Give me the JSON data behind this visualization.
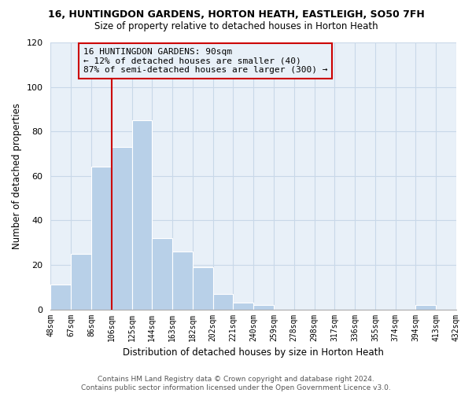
{
  "title": "16, HUNTINGDON GARDENS, HORTON HEATH, EASTLEIGH, SO50 7FH",
  "subtitle": "Size of property relative to detached houses in Horton Heath",
  "xlabel": "Distribution of detached houses by size in Horton Heath",
  "ylabel": "Number of detached properties",
  "bar_values": [
    11,
    25,
    64,
    73,
    85,
    32,
    26,
    19,
    7,
    3,
    2,
    0,
    0,
    0,
    0,
    0,
    0,
    0,
    2,
    0
  ],
  "bin_labels": [
    "48sqm",
    "67sqm",
    "86sqm",
    "106sqm",
    "125sqm",
    "144sqm",
    "163sqm",
    "182sqm",
    "202sqm",
    "221sqm",
    "240sqm",
    "259sqm",
    "278sqm",
    "298sqm",
    "317sqm",
    "336sqm",
    "355sqm",
    "374sqm",
    "394sqm",
    "413sqm",
    "432sqm"
  ],
  "bar_color": "#b8d0e8",
  "vline_color": "#cc0000",
  "vline_x_index": 2,
  "annotation_text_line1": "16 HUNTINGDON GARDENS: 90sqm",
  "annotation_text_line2": "← 12% of detached houses are smaller (40)",
  "annotation_text_line3": "87% of semi-detached houses are larger (300) →",
  "annotation_box_edgecolor": "#cc0000",
  "ylim": [
    0,
    120
  ],
  "yticks": [
    0,
    20,
    40,
    60,
    80,
    100,
    120
  ],
  "grid_color": "#c8d8e8",
  "footnote": "Contains HM Land Registry data © Crown copyright and database right 2024.\nContains public sector information licensed under the Open Government Licence v3.0.",
  "bg_color": "#ffffff",
  "plot_bg_color": "#e8f0f8"
}
